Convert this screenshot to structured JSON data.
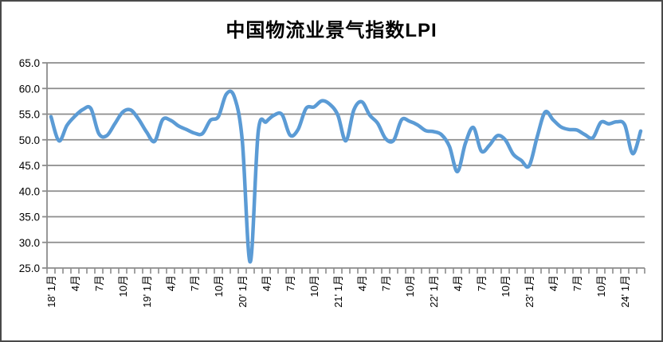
{
  "chart_data": {
    "type": "line",
    "title": "中国物流业景气指数LPI",
    "xlabel": "",
    "ylabel": "",
    "ylim": [
      25.0,
      65.0
    ],
    "y_step": 5.0,
    "y_tick_labels": [
      "65.0",
      "60.0",
      "55.0",
      "50.0",
      "45.0",
      "40.0",
      "35.0",
      "30.0",
      "25.0"
    ],
    "grid": "horizontal",
    "legend": "none",
    "smooth": true,
    "n_points": 75,
    "points_per_x_label": 3,
    "x_tick_labels": [
      "18' 1月",
      "4月",
      "7月",
      "10月",
      "19' 1月",
      "4月",
      "7月",
      "10月",
      "20' 1月",
      "4月",
      "7月",
      "10月",
      "21' 1月",
      "4月",
      "7月",
      "10月",
      "22' 1月",
      "4月",
      "7月",
      "10月",
      "23' 1月",
      "4月",
      "7月",
      "10月",
      "24' 1月"
    ],
    "series": [
      {
        "name": "LPI",
        "start": "2018-01",
        "end": "2024-03",
        "values": [
          54.5,
          49.8,
          52.8,
          54.6,
          55.9,
          56.1,
          51.2,
          50.8,
          53.1,
          55.4,
          55.8,
          54.0,
          51.5,
          49.7,
          53.9,
          53.8,
          52.7,
          52.0,
          51.3,
          51.2,
          53.8,
          54.5,
          58.9,
          58.4,
          49.9,
          26.2,
          51.5,
          53.5,
          54.8,
          54.9,
          50.9,
          52.0,
          56.1,
          56.4,
          57.6,
          56.9,
          54.8,
          49.8,
          55.8,
          57.4,
          54.8,
          53.2,
          50.2,
          49.9,
          53.9,
          53.6,
          52.9,
          51.8,
          51.6,
          51.0,
          48.7,
          43.8,
          49.3,
          52.4,
          47.8,
          48.9,
          50.8,
          50.0,
          47.2,
          46.0,
          44.9,
          50.5,
          55.4,
          53.9,
          52.5,
          52.0,
          51.9,
          51.0,
          50.4,
          53.4,
          53.1,
          53.5,
          52.9,
          47.3,
          51.7
        ]
      }
    ],
    "colors": {
      "line": "#5B9BD5",
      "grid": "#8C8C8C",
      "axis": "#8C8C8C",
      "text": "#000000",
      "border": "#4A4A4A",
      "background": "#FFFFFF"
    }
  }
}
